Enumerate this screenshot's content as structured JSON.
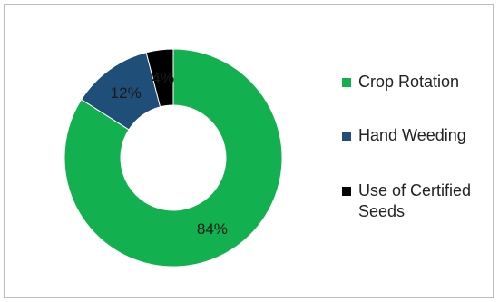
{
  "chart_data": {
    "type": "pie",
    "donut": true,
    "categories": [
      "Crop Rotation",
      "Hand Weeding",
      "Use of Certified Seeds"
    ],
    "values": [
      84,
      12,
      4
    ],
    "labels": [
      "84%",
      "12%",
      "4%"
    ],
    "colors": [
      "#12b04e",
      "#1f4e79",
      "#000000"
    ],
    "legend_position": "right"
  }
}
